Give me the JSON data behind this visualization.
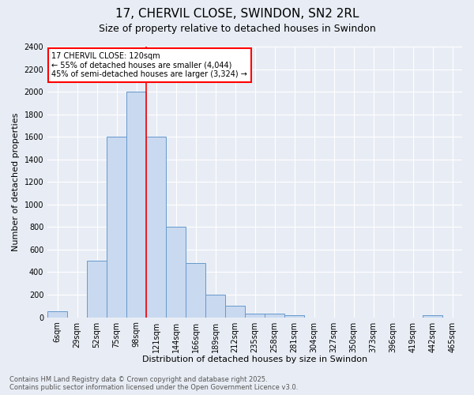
{
  "title": "17, CHERVIL CLOSE, SWINDON, SN2 2RL",
  "subtitle": "Size of property relative to detached houses in Swindon",
  "xlabel": "Distribution of detached houses by size in Swindon",
  "ylabel": "Number of detached properties",
  "categories": [
    "6sqm",
    "29sqm",
    "52sqm",
    "75sqm",
    "98sqm",
    "121sqm",
    "144sqm",
    "166sqm",
    "189sqm",
    "212sqm",
    "235sqm",
    "258sqm",
    "281sqm",
    "304sqm",
    "327sqm",
    "350sqm",
    "373sqm",
    "396sqm",
    "419sqm",
    "442sqm",
    "465sqm"
  ],
  "values": [
    50,
    0,
    500,
    1600,
    2000,
    1600,
    800,
    480,
    200,
    100,
    35,
    30,
    20,
    0,
    0,
    0,
    0,
    0,
    0,
    20,
    0
  ],
  "bar_color": "#c9d9f0",
  "bar_edge_color": "#6699cc",
  "background_color": "#e8edf5",
  "ylim": [
    0,
    2400
  ],
  "yticks": [
    0,
    200,
    400,
    600,
    800,
    1000,
    1200,
    1400,
    1600,
    1800,
    2000,
    2200,
    2400
  ],
  "vline_x": 4,
  "annotation_text": "17 CHERVIL CLOSE: 120sqm\n← 55% of detached houses are smaller (4,044)\n45% of semi-detached houses are larger (3,324) →",
  "annotation_box_color": "white",
  "annotation_box_edge": "red",
  "footer_line1": "Contains HM Land Registry data © Crown copyright and database right 2025.",
  "footer_line2": "Contains public sector information licensed under the Open Government Licence v3.0.",
  "title_fontsize": 11,
  "subtitle_fontsize": 9,
  "tick_fontsize": 7,
  "label_fontsize": 8,
  "annotation_fontsize": 7,
  "footer_fontsize": 6
}
